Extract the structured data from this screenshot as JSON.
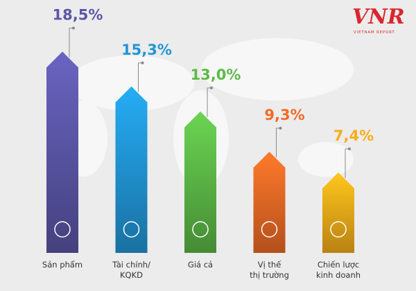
{
  "chart_data": {
    "type": "bar",
    "categories": [
      "Sản phẩm",
      "Tài chính/\nKQKD",
      "Giá cả",
      "Vị thế\nthị trường",
      "Chiến lược\nkinh doanh"
    ],
    "values": [
      18.5,
      15.3,
      13.0,
      9.3,
      7.4
    ],
    "value_labels": [
      "18,5%",
      "15,3%",
      "13,0%",
      "9,3%",
      "7,4%"
    ],
    "colors": [
      "#5c57a8",
      "#2196d6",
      "#5db947",
      "#f06a25",
      "#f8ad18"
    ],
    "ylim": [
      0,
      20
    ]
  },
  "logo": {
    "mark": "VNR",
    "text": "VIETNAM REPORT"
  }
}
